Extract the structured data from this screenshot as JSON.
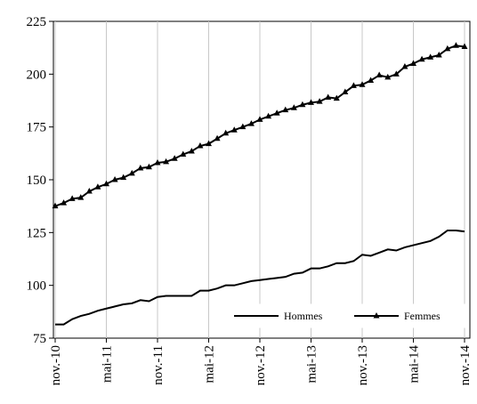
{
  "chart_data": {
    "type": "line",
    "categories": [
      "nov.-10",
      null,
      null,
      null,
      null,
      null,
      "mai-11",
      null,
      null,
      null,
      null,
      null,
      "nov.-11",
      null,
      null,
      null,
      null,
      null,
      "mai-12",
      null,
      null,
      null,
      null,
      null,
      "nov.-12",
      null,
      null,
      null,
      null,
      null,
      "mai-13",
      null,
      null,
      null,
      null,
      null,
      "nov.-13",
      null,
      null,
      null,
      null,
      null,
      "mai-14",
      null,
      null,
      null,
      null,
      null,
      "nov.-14"
    ],
    "series": [
      {
        "name": "Hommes",
        "color": "#000000",
        "marker": "none",
        "values": [
          81.5,
          81.5,
          84,
          85.5,
          86.5,
          88,
          89,
          90,
          91,
          91.5,
          93,
          92.5,
          94.5,
          95,
          95,
          95,
          95,
          97.5,
          97.5,
          98.5,
          100,
          100,
          101,
          102,
          102.5,
          103,
          103.5,
          104,
          105.5,
          106,
          108,
          108,
          109,
          110.5,
          110.5,
          111.5,
          114.5,
          114,
          115.5,
          117,
          116.5,
          118,
          119,
          120,
          121,
          123,
          126,
          126,
          125.5
        ]
      },
      {
        "name": "Femmes",
        "color": "#000000",
        "marker": "triangle",
        "values": [
          137.5,
          139,
          141,
          141.5,
          144.5,
          146.5,
          148,
          150,
          151,
          153,
          155.5,
          156,
          158,
          158.5,
          160,
          162,
          163.5,
          166,
          167,
          169.5,
          172,
          173.5,
          175,
          176.5,
          178.5,
          180,
          181.5,
          183,
          184,
          185.5,
          186.5,
          187,
          189,
          188.5,
          191.5,
          194.5,
          195,
          197,
          199.5,
          198.5,
          200,
          203.5,
          205,
          207,
          208,
          209,
          212,
          213.5,
          213
        ]
      }
    ],
    "ylim": [
      75,
      225
    ],
    "yticks": [
      75,
      100,
      125,
      150,
      175,
      200,
      225
    ],
    "grid": "x",
    "legend": "bottom-right"
  }
}
